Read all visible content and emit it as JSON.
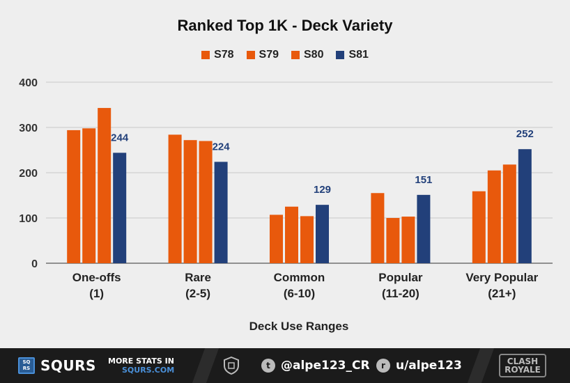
{
  "chart_data": {
    "type": "bar",
    "title": "Ranked Top 1K - Deck Variety",
    "xlabel": "Deck Use Ranges",
    "ylabel": "",
    "ylim": [
      0,
      400
    ],
    "yticks": [
      "0",
      "100",
      "200",
      "300",
      "400"
    ],
    "grid": true,
    "legend": "top-center",
    "categories": [
      [
        "One-offs",
        "(1)"
      ],
      [
        "Rare",
        "(2-5)"
      ],
      [
        "Common",
        "(6-10)"
      ],
      [
        "Popular",
        "(11-20)"
      ],
      [
        "Very Popular",
        "(21+)"
      ]
    ],
    "series": [
      {
        "name": "S78",
        "color": "#e8590c",
        "values": [
          294,
          284,
          107,
          155,
          159
        ]
      },
      {
        "name": "S79",
        "color": "#e8590c",
        "values": [
          298,
          272,
          125,
          100,
          205
        ]
      },
      {
        "name": "S80",
        "color": "#e8590c",
        "values": [
          343,
          270,
          104,
          103,
          218
        ]
      },
      {
        "name": "S81",
        "color": "#22407a",
        "values": [
          244,
          224,
          129,
          151,
          252
        ],
        "labels": [
          "244",
          "224",
          "129",
          "151",
          "252"
        ]
      }
    ]
  },
  "footer": {
    "logo_text": "SQ RS",
    "brand": "SQURS",
    "more_line1": "MORE STATS IN",
    "more_line2": "SQURS.COM",
    "twitter": "@alpe123_CR",
    "reddit": "u/alpe123",
    "game_logo": "CLASH ROYALE",
    "colors": {
      "background": "#1b1b1b",
      "accent": "#4a90d9"
    },
    "icons": [
      "squrs-logo-icon",
      "shield-icon",
      "twitter-icon",
      "reddit-icon",
      "clash-royale-logo-icon"
    ]
  }
}
